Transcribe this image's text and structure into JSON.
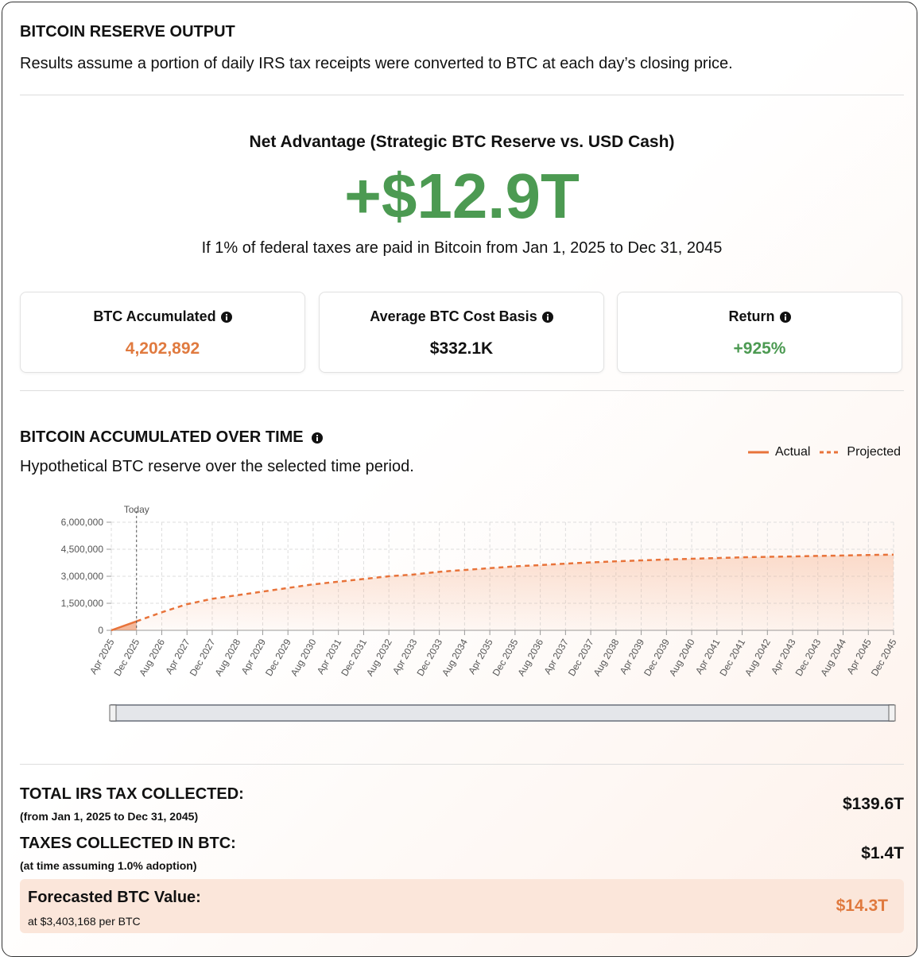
{
  "header": {
    "title": "BITCOIN RESERVE OUTPUT",
    "subtitle": "Results assume a portion of daily IRS tax receipts were converted to BTC at each day’s closing price."
  },
  "net_advantage": {
    "label": "Net Advantage (Strategic BTC Reserve vs. USD Cash)",
    "value": "+$12.9T",
    "note": "If 1% of federal taxes are paid in Bitcoin from Jan 1, 2025 to Dec 31, 2045"
  },
  "stats": [
    {
      "label": "BTC Accumulated",
      "value": "4,202,892"
    },
    {
      "label": "Average BTC Cost Basis",
      "value": "$332.1K"
    },
    {
      "label": "Return",
      "value": "+925%"
    }
  ],
  "chart_data": {
    "type": "line",
    "title": "BITCOIN ACCUMULATED OVER TIME",
    "subtitle": "Hypothetical BTC reserve over the selected time period.",
    "annotation": "Today",
    "categories": [
      "Apr 2025",
      "Dec 2025",
      "Aug 2026",
      "Apr 2027",
      "Dec 2027",
      "Aug 2028",
      "Apr 2029",
      "Dec 2029",
      "Aug 2030",
      "Apr 2031",
      "Dec 2031",
      "Aug 2032",
      "Apr 2033",
      "Dec 2033",
      "Aug 2034",
      "Apr 2035",
      "Dec 2035",
      "Aug 2036",
      "Apr 2037",
      "Dec 2037",
      "Aug 2038",
      "Apr 2039",
      "Dec 2039",
      "Aug 2040",
      "Apr 2041",
      "Dec 2041",
      "Aug 2042",
      "Apr 2043",
      "Dec 2043",
      "Aug 2044",
      "Apr 2045",
      "Dec 2045"
    ],
    "series": [
      {
        "name": "Actual",
        "color": "#e8733a",
        "style": "solid",
        "values": [
          0,
          500000,
          null,
          null,
          null,
          null,
          null,
          null,
          null,
          null,
          null,
          null,
          null,
          null,
          null,
          null,
          null,
          null,
          null,
          null,
          null,
          null,
          null,
          null,
          null,
          null,
          null,
          null,
          null,
          null,
          null,
          null
        ]
      },
      {
        "name": "Projected",
        "color": "#e8733a",
        "style": "dashed",
        "values": [
          null,
          500000,
          1000000,
          1450000,
          1750000,
          1950000,
          2150000,
          2350000,
          2550000,
          2700000,
          2850000,
          3000000,
          3100000,
          3250000,
          3350000,
          3450000,
          3550000,
          3620000,
          3700000,
          3770000,
          3830000,
          3880000,
          3930000,
          3970000,
          4010000,
          4050000,
          4080000,
          4100000,
          4130000,
          4150000,
          4180000,
          4200000
        ]
      }
    ],
    "ylim": [
      0,
      6000000
    ],
    "yticks": [
      0,
      {
        "value": 1500000,
        "label": "1,500,000"
      },
      {
        "value": 3000000,
        "label": "3,000,000"
      },
      {
        "value": 4500000,
        "label": "4,500,000"
      },
      {
        "value": 6000000,
        "label": "6,000,000"
      }
    ],
    "grid": true
  },
  "summary": [
    {
      "label": "TOTAL IRS TAX COLLECTED:",
      "note": "(from Jan 1, 2025 to Dec 31, 2045)",
      "value": "$139.6T"
    },
    {
      "label": "TAXES COLLECTED IN BTC:",
      "note": "(at time assuming 1.0% adoption)",
      "value": "$1.4T"
    },
    {
      "label": "Forecasted BTC Value:",
      "note": "at $3,403,168 per BTC",
      "value": "$14.3T"
    }
  ]
}
